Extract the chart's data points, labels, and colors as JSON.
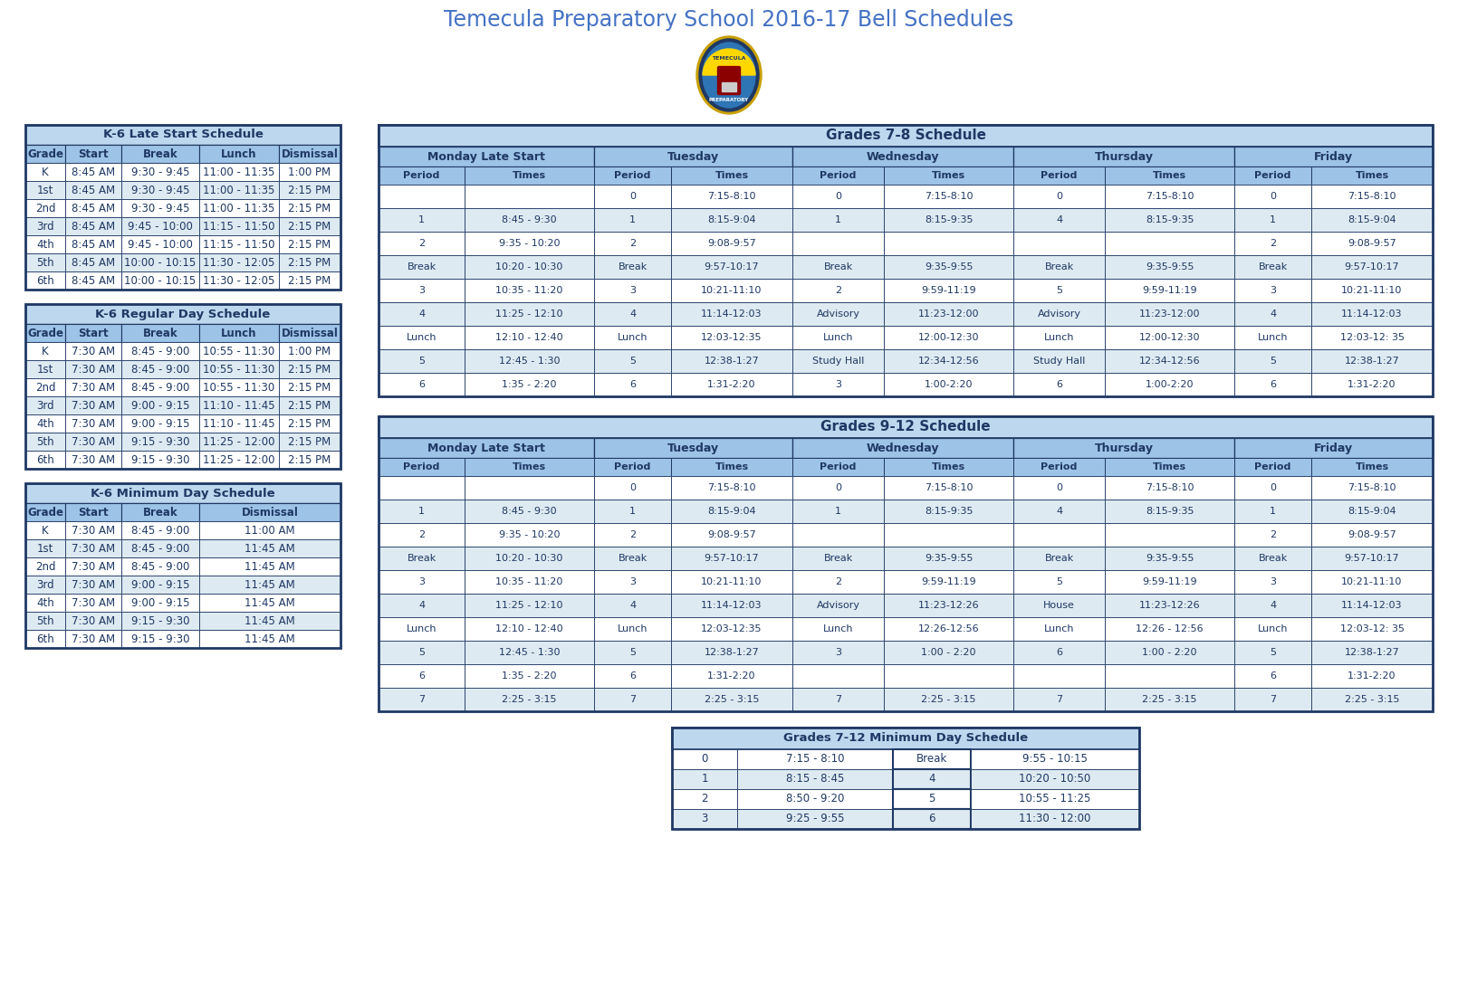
{
  "title": "Temecula Preparatory School 2016-17 Bell Schedules",
  "title_color": "#4472C4",
  "bg_color": "#FFFFFF",
  "table_border_color": "#1F3864",
  "header_bg": "#BDD7EE",
  "subheader_bg": "#9DC3E6",
  "cell_text_color": "#1F3864",
  "white": "#FFFFFF",
  "alt_row": "#DEEAF1",
  "k6_late_start": {
    "title": "K-6 Late Start Schedule",
    "headers": [
      "Grade",
      "Start",
      "Break",
      "Lunch",
      "Dismissal"
    ],
    "rows": [
      [
        "K",
        "8:45 AM",
        "9:30 - 9:45",
        "11:00 - 11:35",
        "1:00 PM"
      ],
      [
        "1st",
        "8:45 AM",
        "9:30 - 9:45",
        "11:00 - 11:35",
        "2:15 PM"
      ],
      [
        "2nd",
        "8:45 AM",
        "9:30 - 9:45",
        "11:00 - 11:35",
        "2:15 PM"
      ],
      [
        "3rd",
        "8:45 AM",
        "9:45 - 10:00",
        "11:15 - 11:50",
        "2:15 PM"
      ],
      [
        "4th",
        "8:45 AM",
        "9:45 - 10:00",
        "11:15 - 11:50",
        "2:15 PM"
      ],
      [
        "5th",
        "8:45 AM",
        "10:00 - 10:15",
        "11:30 - 12:05",
        "2:15 PM"
      ],
      [
        "6th",
        "8:45 AM",
        "10:00 - 10:15",
        "11:30 - 12:05",
        "2:15 PM"
      ]
    ]
  },
  "k6_regular": {
    "title": "K-6 Regular Day Schedule",
    "headers": [
      "Grade",
      "Start",
      "Break",
      "Lunch",
      "Dismissal"
    ],
    "rows": [
      [
        "K",
        "7:30 AM",
        "8:45 - 9:00",
        "10:55 - 11:30",
        "1:00 PM"
      ],
      [
        "1st",
        "7:30 AM",
        "8:45 - 9:00",
        "10:55 - 11:30",
        "2:15 PM"
      ],
      [
        "2nd",
        "7:30 AM",
        "8:45 - 9:00",
        "10:55 - 11:30",
        "2:15 PM"
      ],
      [
        "3rd",
        "7:30 AM",
        "9:00 - 9:15",
        "11:10 - 11:45",
        "2:15 PM"
      ],
      [
        "4th",
        "7:30 AM",
        "9:00 - 9:15",
        "11:10 - 11:45",
        "2:15 PM"
      ],
      [
        "5th",
        "7:30 AM",
        "9:15 - 9:30",
        "11:25 - 12:00",
        "2:15 PM"
      ],
      [
        "6th",
        "7:30 AM",
        "9:15 - 9:30",
        "11:25 - 12:00",
        "2:15 PM"
      ]
    ]
  },
  "k6_minimum": {
    "title": "K-6 Minimum Day Schedule",
    "headers": [
      "Grade",
      "Start",
      "Break",
      "Dismissal"
    ],
    "rows": [
      [
        "K",
        "7:30 AM",
        "8:45 - 9:00",
        "11:00 AM"
      ],
      [
        "1st",
        "7:30 AM",
        "8:45 - 9:00",
        "11:45 AM"
      ],
      [
        "2nd",
        "7:30 AM",
        "8:45 - 9:00",
        "11:45 AM"
      ],
      [
        "3rd",
        "7:30 AM",
        "9:00 - 9:15",
        "11:45 AM"
      ],
      [
        "4th",
        "7:30 AM",
        "9:00 - 9:15",
        "11:45 AM"
      ],
      [
        "5th",
        "7:30 AM",
        "9:15 - 9:30",
        "11:45 AM"
      ],
      [
        "6th",
        "7:30 AM",
        "9:15 - 9:30",
        "11:45 AM"
      ]
    ]
  },
  "grades78": {
    "title": "Grades 7-8 Schedule",
    "day_headers": [
      "Monday Late Start",
      "Tuesday",
      "Wednesday",
      "Thursday",
      "Friday"
    ],
    "sub_headers": [
      "Period",
      "Times",
      "Period",
      "Times",
      "Period",
      "Times",
      "Period",
      "Times",
      "Period",
      "Times"
    ],
    "rows": [
      [
        "",
        "",
        "0",
        "7:15-8:10",
        "0",
        "7:15-8:10",
        "0",
        "7:15-8:10",
        "0",
        "7:15-8:10"
      ],
      [
        "1",
        "8:45 - 9:30",
        "1",
        "8:15-9:04",
        "1",
        "8:15-9:35",
        "4",
        "8:15-9:35",
        "1",
        "8:15-9:04"
      ],
      [
        "2",
        "9:35 - 10:20",
        "2",
        "9:08-9:57",
        "",
        "",
        "",
        "",
        "2",
        "9:08-9:57"
      ],
      [
        "Break",
        "10:20 - 10:30",
        "Break",
        "9:57-10:17",
        "Break",
        "9:35-9:55",
        "Break",
        "9:35-9:55",
        "Break",
        "9:57-10:17"
      ],
      [
        "3",
        "10:35 - 11:20",
        "3",
        "10:21-11:10",
        "2",
        "9:59-11:19",
        "5",
        "9:59-11:19",
        "3",
        "10:21-11:10"
      ],
      [
        "4",
        "11:25 - 12:10",
        "4",
        "11:14-12:03",
        "Advisory",
        "11:23-12:00",
        "Advisory",
        "11:23-12:00",
        "4",
        "11:14-12:03"
      ],
      [
        "Lunch",
        "12:10 - 12:40",
        "Lunch",
        "12:03-12:35",
        "Lunch",
        "12:00-12:30",
        "Lunch",
        "12:00-12:30",
        "Lunch",
        "12:03-12: 35"
      ],
      [
        "5",
        "12:45 - 1:30",
        "5",
        "12:38-1:27",
        "Study Hall",
        "12:34-12:56",
        "Study Hall",
        "12:34-12:56",
        "5",
        "12:38-1:27"
      ],
      [
        "6",
        "1:35 - 2:20",
        "6",
        "1:31-2:20",
        "3",
        "1:00-2:20",
        "6",
        "1:00-2:20",
        "6",
        "1:31-2:20"
      ]
    ]
  },
  "grades912": {
    "title": "Grades 9-12 Schedule",
    "day_headers": [
      "Monday Late Start",
      "Tuesday",
      "Wednesday",
      "Thursday",
      "Friday"
    ],
    "sub_headers": [
      "Period",
      "Times",
      "Period",
      "Times",
      "Period",
      "Times",
      "Period",
      "Times",
      "Period",
      "Times"
    ],
    "rows": [
      [
        "",
        "",
        "0",
        "7:15-8:10",
        "0",
        "7:15-8:10",
        "0",
        "7:15-8:10",
        "0",
        "7:15-8:10"
      ],
      [
        "1",
        "8:45 - 9:30",
        "1",
        "8:15-9:04",
        "1",
        "8:15-9:35",
        "4",
        "8:15-9:35",
        "1",
        "8:15-9:04"
      ],
      [
        "2",
        "9:35 - 10:20",
        "2",
        "9:08-9:57",
        "",
        "",
        "",
        "",
        "2",
        "9:08-9:57"
      ],
      [
        "Break",
        "10:20 - 10:30",
        "Break",
        "9:57-10:17",
        "Break",
        "9:35-9:55",
        "Break",
        "9:35-9:55",
        "Break",
        "9:57-10:17"
      ],
      [
        "3",
        "10:35 - 11:20",
        "3",
        "10:21-11:10",
        "2",
        "9:59-11:19",
        "5",
        "9:59-11:19",
        "3",
        "10:21-11:10"
      ],
      [
        "4",
        "11:25 - 12:10",
        "4",
        "11:14-12:03",
        "Advisory",
        "11:23-12:26",
        "House",
        "11:23-12:26",
        "4",
        "11:14-12:03"
      ],
      [
        "Lunch",
        "12:10 - 12:40",
        "Lunch",
        "12:03-12:35",
        "Lunch",
        "12:26-12:56",
        "Lunch",
        "12:26 - 12:56",
        "Lunch",
        "12:03-12: 35"
      ],
      [
        "5",
        "12:45 - 1:30",
        "5",
        "12:38-1:27",
        "3",
        "1:00 - 2:20",
        "6",
        "1:00 - 2:20",
        "5",
        "12:38-1:27"
      ],
      [
        "6",
        "1:35 - 2:20",
        "6",
        "1:31-2:20",
        "",
        "",
        "",
        "",
        "6",
        "1:31-2:20"
      ],
      [
        "7",
        "2:25 - 3:15",
        "7",
        "2:25 - 3:15",
        "7",
        "2:25 - 3:15",
        "7",
        "2:25 - 3:15",
        "7",
        "2:25 - 3:15"
      ]
    ]
  },
  "grades712_min": {
    "title": "Grades 7-12 Minimum Day Schedule",
    "rows": [
      [
        "0",
        "7:15 - 8:10",
        "Break",
        "9:55 - 10:15"
      ],
      [
        "1",
        "8:15 - 8:45",
        "4",
        "10:20 - 10:50"
      ],
      [
        "2",
        "8:50 - 9:20",
        "5",
        "10:55 - 11:25"
      ],
      [
        "3",
        "9:25 - 9:55",
        "6",
        "11:30 - 12:00"
      ]
    ]
  }
}
